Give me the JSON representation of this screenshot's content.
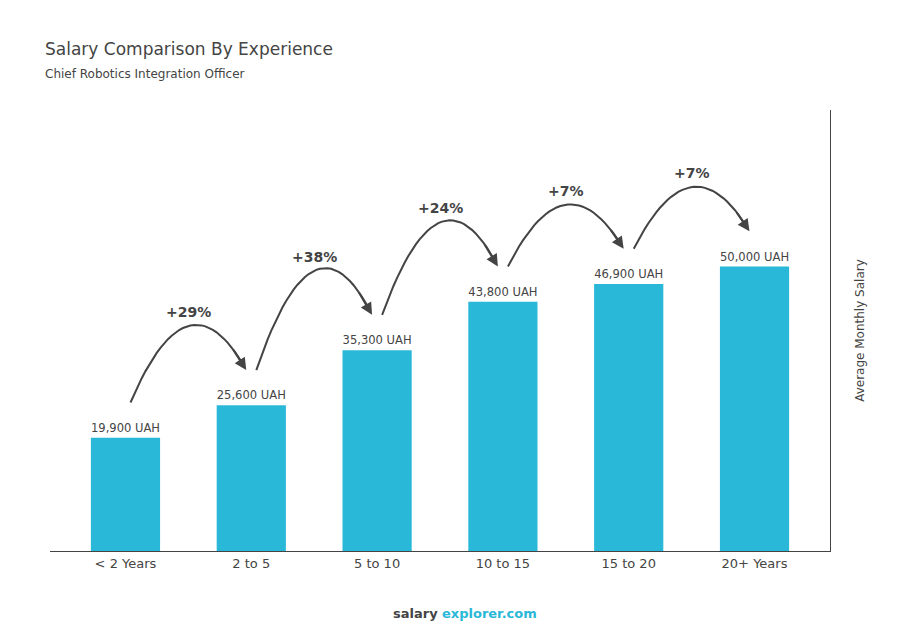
{
  "chart_data": {
    "type": "bar",
    "title": "Salary Comparison By Experience",
    "subtitle": "Chief Robotics Integration Officer",
    "ylabel": "Average Monthly Salary",
    "categories": [
      "< 2 Years",
      "2 to 5",
      "5 to 10",
      "10 to 15",
      "15 to 20",
      "20+ Years"
    ],
    "values": [
      19900,
      25600,
      35300,
      43800,
      46900,
      50000
    ],
    "value_labels": [
      "19,900 UAH",
      "25,600 UAH",
      "35,300 UAH",
      "43,800 UAH",
      "46,900 UAH",
      "50,000 UAH"
    ],
    "data_labels": true,
    "color": "#2ab8d8",
    "annotations": [
      "+29%",
      "+38%",
      "+24%",
      "+7%",
      "+7%"
    ],
    "footer": [
      "salary",
      "explorer.com"
    ],
    "ylim": [
      0,
      77500
    ],
    "yticks": [],
    "tick_labels": "x",
    "grid": false
  }
}
